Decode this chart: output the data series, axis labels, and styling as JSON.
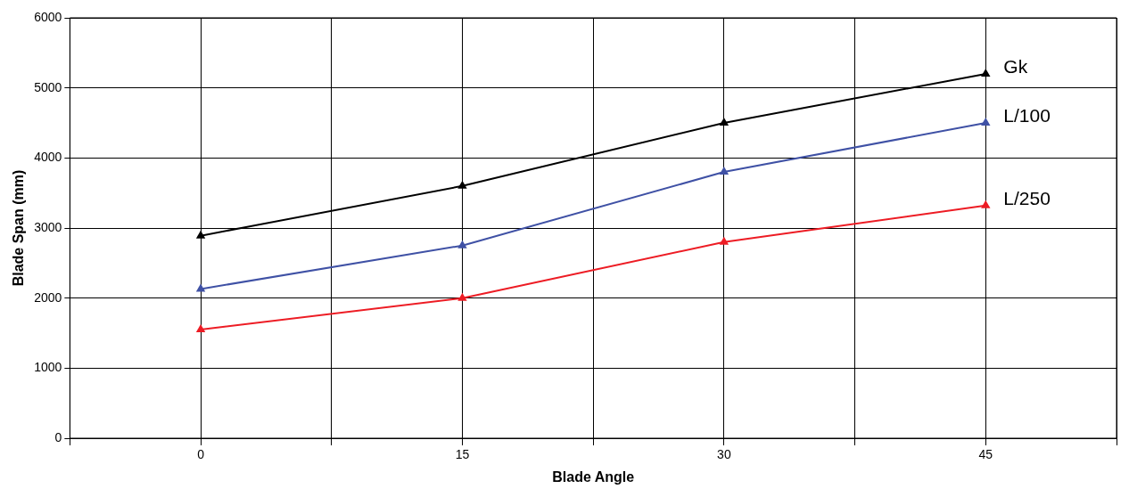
{
  "chart_data": {
    "type": "line",
    "xlabel": "Blade Angle",
    "ylabel": "Blade Span (mm)",
    "x": [
      0,
      15,
      30,
      45
    ],
    "xlim": [
      -7.5,
      52.5
    ],
    "xticks": [
      {
        "value": -7.5,
        "label": null
      },
      0,
      {
        "value": 7.5,
        "label": null
      },
      15,
      {
        "value": 22.5,
        "label": null
      },
      30,
      {
        "value": 37.5,
        "label": null
      },
      45,
      {
        "value": 52.5,
        "label": null
      }
    ],
    "ylim": [
      0,
      6000
    ],
    "yticks": [
      0,
      1000,
      2000,
      3000,
      4000,
      5000,
      6000
    ],
    "grid": true,
    "legend": false,
    "marker": "triangle",
    "line_style": "solid",
    "series": [
      {
        "name": "Gk",
        "color": "#000000",
        "values": [
          2890,
          3600,
          4500,
          5200
        ]
      },
      {
        "name": "L/100",
        "color": "#3f51a5",
        "values": [
          2130,
          2750,
          3800,
          4500
        ]
      },
      {
        "name": "L/250",
        "color": "#ed1c24",
        "values": [
          1550,
          2000,
          2800,
          3320
        ]
      }
    ]
  }
}
